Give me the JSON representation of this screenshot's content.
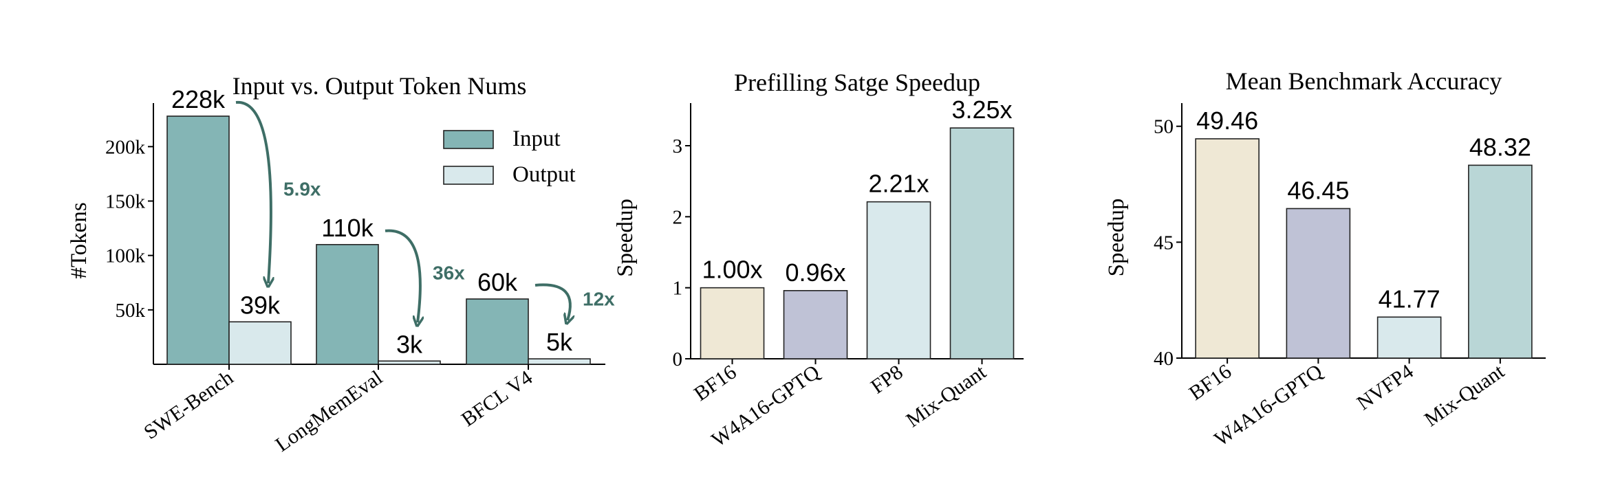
{
  "colors": {
    "input": "#84b5b5",
    "output": "#d9e9ec",
    "arrow": "#3e6e66",
    "highlight": "#a31515",
    "bf16": "#efe8d5",
    "w4a16": "#bfc2d6",
    "fp8": "#d9e9ec",
    "nvfp4": "#d9e9ec",
    "mixquant": "#b9d6d6",
    "edge": "#222222"
  },
  "chart_data": [
    {
      "type": "bar",
      "title": "Input vs. Output Token Nums",
      "xlabel": "",
      "ylabel": "#Tokens",
      "ylim": [
        0,
        240000
      ],
      "yticks": [
        50000,
        100000,
        150000,
        200000
      ],
      "ytick_labels": [
        "50k",
        "100k",
        "150k",
        "200k"
      ],
      "categories": [
        "SWE-Bench",
        "LongMemEval",
        "BFCL V4"
      ],
      "series": [
        {
          "name": "Input",
          "values": [
            228000,
            110000,
            60000
          ],
          "labels": [
            "228k",
            "110k",
            "60k"
          ]
        },
        {
          "name": "Output",
          "values": [
            39000,
            3000,
            5000
          ],
          "labels": [
            "39k",
            "3k",
            "5k"
          ]
        }
      ],
      "ratios": [
        "5.9x",
        "36x",
        "12x"
      ],
      "legend_position": "top-right",
      "grid": false
    },
    {
      "type": "bar",
      "title": "Prefilling Satge Speedup",
      "xlabel": "",
      "ylabel": "Speedup",
      "ylim": [
        0,
        3.6
      ],
      "yticks": [
        0,
        1,
        2,
        3
      ],
      "ytick_labels": [
        "0",
        "1",
        "2",
        "3"
      ],
      "categories": [
        "BF16",
        "W4A16-GPTQ",
        "FP8",
        "Mix-Quant"
      ],
      "values": [
        1.0,
        0.96,
        2.21,
        3.25
      ],
      "labels": [
        "1.00x",
        "0.96x",
        "2.21x",
        "3.25x"
      ],
      "highlight_index": 3,
      "grid": false
    },
    {
      "type": "bar",
      "title": "Mean Benchmark Accuracy",
      "xlabel": "",
      "ylabel": "Speedup",
      "ylim": [
        40,
        51
      ],
      "yticks": [
        40,
        45,
        50
      ],
      "ytick_labels": [
        "40",
        "45",
        "50"
      ],
      "categories": [
        "BF16",
        "W4A16-GPTQ",
        "NVFP4",
        "Mix-Quant"
      ],
      "values": [
        49.46,
        46.45,
        41.77,
        48.32
      ],
      "labels": [
        "49.46",
        "46.45",
        "41.77",
        "48.32"
      ],
      "highlight_index": 3,
      "grid": false
    }
  ]
}
